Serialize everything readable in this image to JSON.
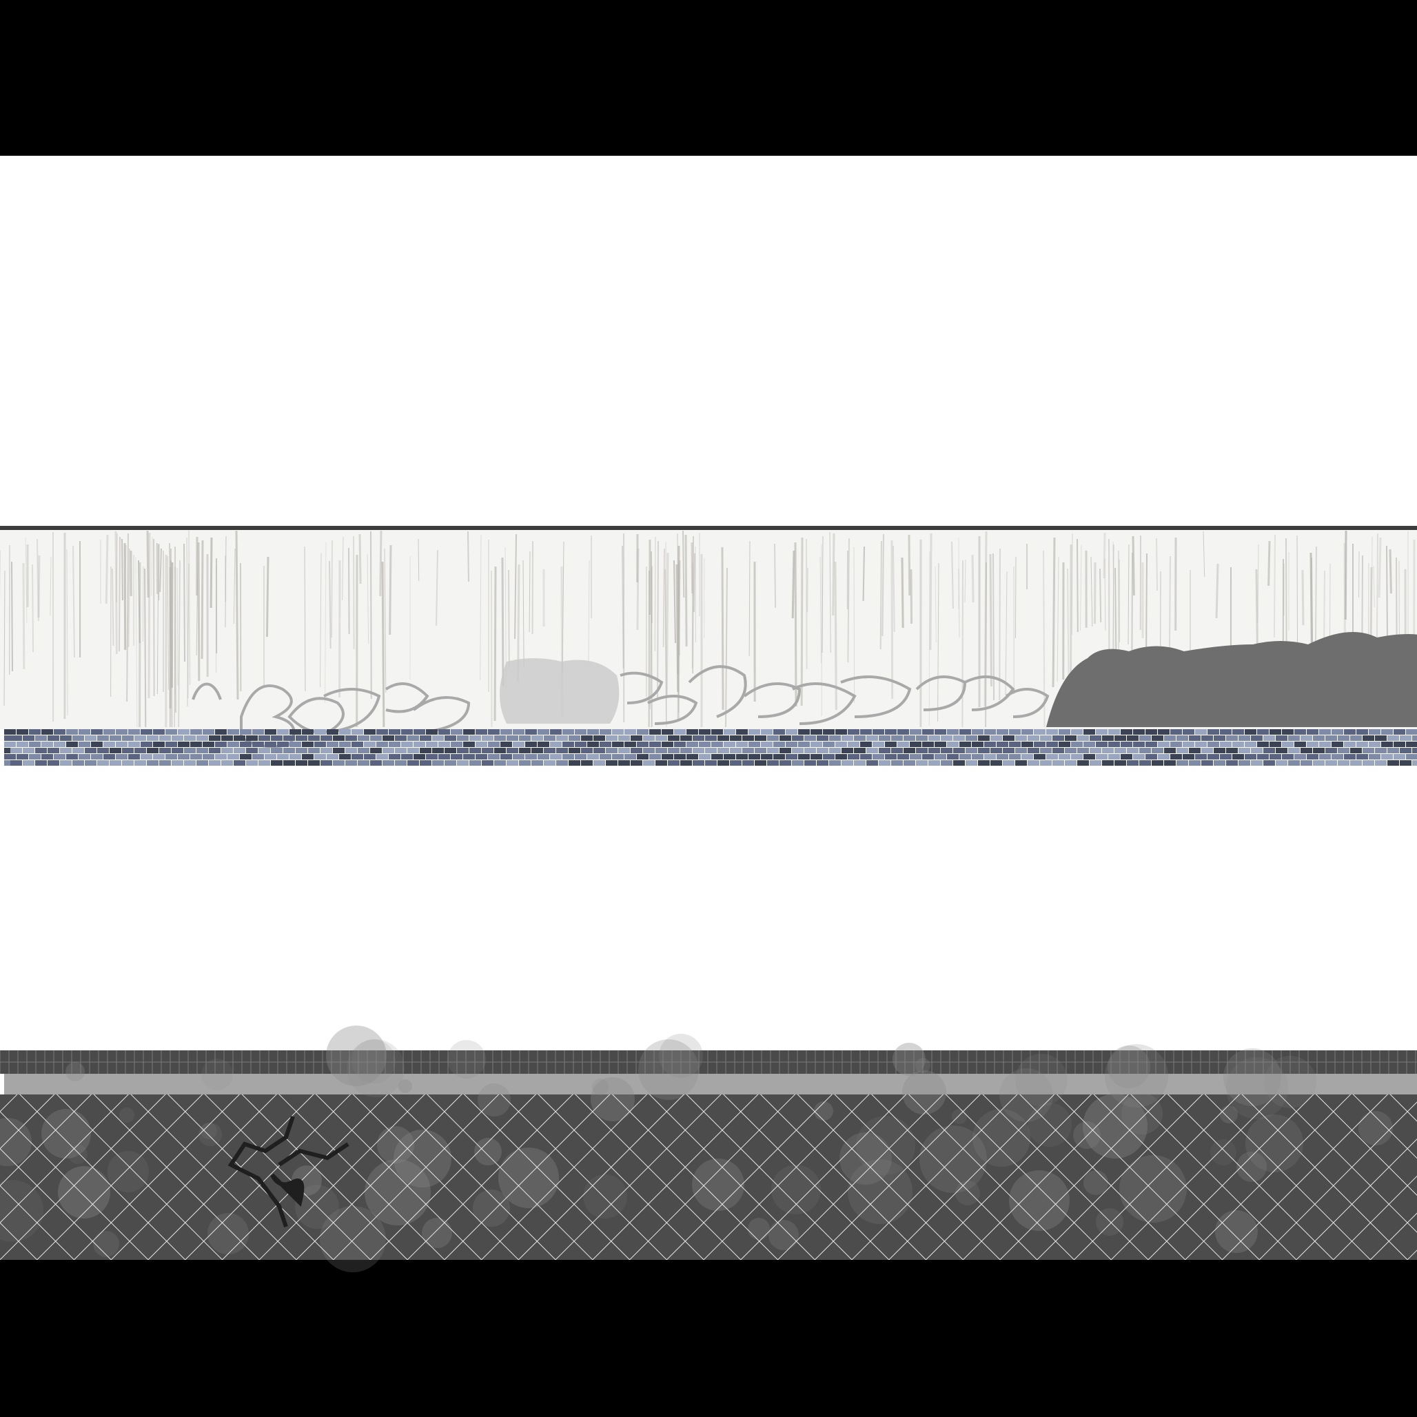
{
  "texture_sheet": {
    "background_color": "#000000",
    "sheet_color": "#ffffff",
    "wall": {
      "name": "graffiti-wall",
      "plaster_color": "#f4f4f2",
      "streak_color": "#b9b7b1",
      "graffiti_color": "#a9a9a9",
      "shadow_blob_color": "#6e6e6e",
      "top_edge_color": "#3c3c3c",
      "brick_colors": [
        "#3b4355",
        "#5a6480",
        "#7e8aa6",
        "#9aa6c0"
      ]
    },
    "floor": {
      "name": "tile-floor",
      "grid_tile_color": "#4a4a4a",
      "grid_line_color": "#7a7a7a",
      "curb_color": "#a6a6a6",
      "base_color": "#4c4c4c",
      "mesh_line_color": "#e8e8e8",
      "crack_color": "#1f1f1f",
      "stain_color": "#8a8a8a"
    }
  }
}
